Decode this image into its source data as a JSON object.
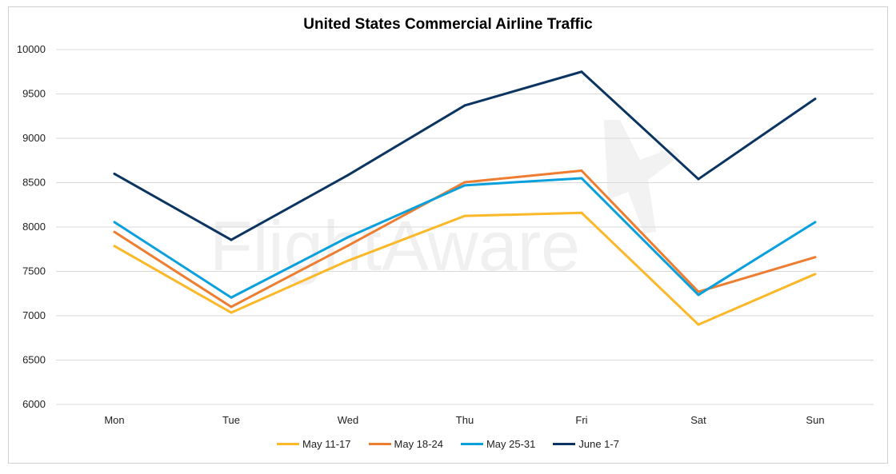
{
  "chart_data": {
    "type": "line",
    "title": "United States Commercial Airline Traffic",
    "categories": [
      "Mon",
      "Tue",
      "Wed",
      "Thu",
      "Fri",
      "Sat",
      "Sun"
    ],
    "ylim": [
      6000,
      10000
    ],
    "yticks": [
      6000,
      6500,
      7000,
      7500,
      8000,
      8500,
      9000,
      9500,
      10000
    ],
    "grid": true,
    "legend": "bottom",
    "series": [
      {
        "name": "May 11-17",
        "color": "#FBB829",
        "values": [
          7785,
          7035,
          7620,
          8125,
          8160,
          6900,
          7470
        ]
      },
      {
        "name": "May 18-24",
        "color": "#ED7D31",
        "values": [
          7945,
          7100,
          7790,
          8505,
          8635,
          7270,
          7660
        ]
      },
      {
        "name": "May 25-31",
        "color": "#0AA0DC",
        "values": [
          8055,
          7205,
          7885,
          8470,
          8550,
          7235,
          8055
        ]
      },
      {
        "name": "June 1-7",
        "color": "#0B3461",
        "values": [
          8600,
          7855,
          8585,
          9370,
          9750,
          8540,
          9445
        ]
      }
    ]
  },
  "watermark": "FlightAware"
}
